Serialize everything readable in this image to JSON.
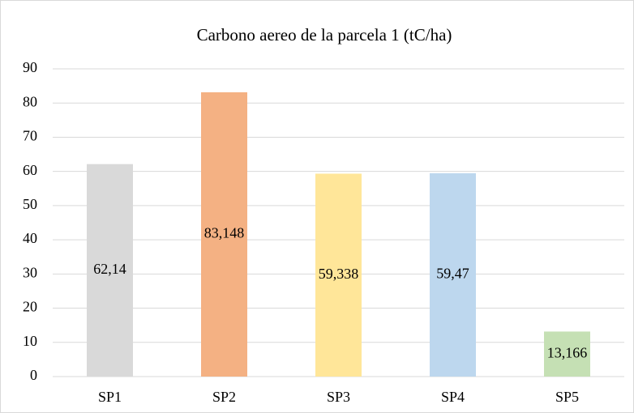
{
  "chart_data": {
    "type": "bar",
    "title": "Carbono aereo de la parcela 1 (tC/ha)",
    "categories": [
      "SP1",
      "SP2",
      "SP3",
      "SP4",
      "SP5"
    ],
    "values": [
      62.14,
      83.148,
      59.338,
      59.47,
      13.166
    ],
    "value_labels": [
      "62,14",
      "83,148",
      "59,338",
      "59,47",
      "13,166"
    ],
    "colors": [
      "#d9d9d9",
      "#f4b183",
      "#ffe699",
      "#bdd7ee",
      "#c5e0b4"
    ],
    "ylim": [
      0,
      90
    ],
    "yticks": [
      0,
      10,
      20,
      30,
      40,
      50,
      60,
      70,
      80,
      90
    ],
    "grid": true
  }
}
